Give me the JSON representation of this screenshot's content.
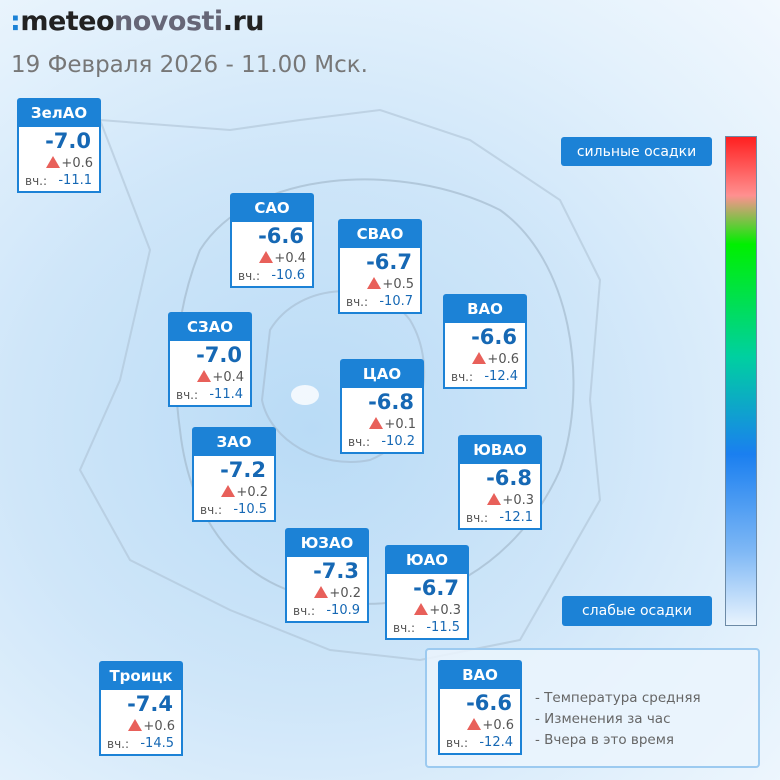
{
  "header": {
    "logo": [
      "meteo",
      "novosti",
      ".ru"
    ],
    "subtitle": "19 Февраля 2026 - 11.00 Мск."
  },
  "yesterday_label": "вч.:",
  "districts": [
    {
      "name": "ЗелАО",
      "temp": "-7.0",
      "change": "+0.6",
      "yesterday": "-11.1"
    },
    {
      "name": "САО",
      "temp": "-6.6",
      "change": "+0.4",
      "yesterday": "-10.6"
    },
    {
      "name": "СВАО",
      "temp": "-6.7",
      "change": "+0.5",
      "yesterday": "-10.7"
    },
    {
      "name": "ВАО",
      "temp": "-6.6",
      "change": "+0.6",
      "yesterday": "-12.4"
    },
    {
      "name": "СЗАО",
      "temp": "-7.0",
      "change": "+0.4",
      "yesterday": "-11.4"
    },
    {
      "name": "ЦАО",
      "temp": "-6.8",
      "change": "+0.1",
      "yesterday": "-10.2"
    },
    {
      "name": "ЗАО",
      "temp": "-7.2",
      "change": "+0.2",
      "yesterday": "-10.5"
    },
    {
      "name": "ЮВАО",
      "temp": "-6.8",
      "change": "+0.3",
      "yesterday": "-12.1"
    },
    {
      "name": "ЮЗАО",
      "temp": "-7.3",
      "change": "+0.2",
      "yesterday": "-10.9"
    },
    {
      "name": "ЮАО",
      "temp": "-6.7",
      "change": "+0.3",
      "yesterday": "-11.5"
    },
    {
      "name": "Троицк",
      "temp": "-7.4",
      "change": "+0.6",
      "yesterday": "-14.5"
    }
  ],
  "precipitation_scale": {
    "high": "сильные осадки",
    "low": "слабые осадки"
  },
  "key": {
    "card": {
      "name": "ВАО",
      "temp": "-6.6",
      "change": "+0.6",
      "yesterday": "-12.4"
    },
    "descriptions": [
      "- Температура средняя",
      "- Изменения за час",
      "- Вчера в это время"
    ]
  }
}
